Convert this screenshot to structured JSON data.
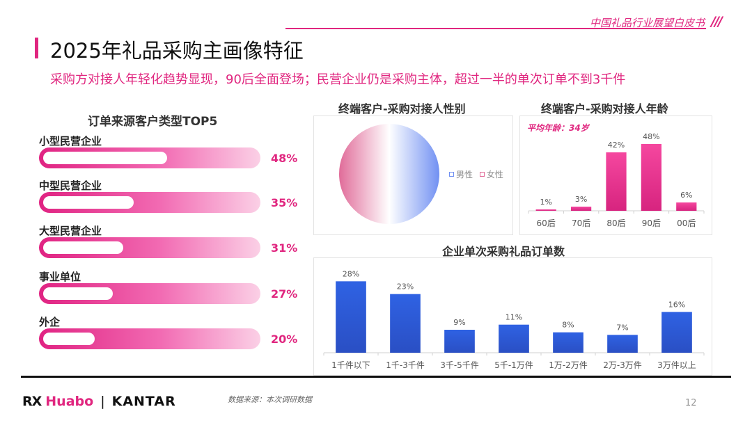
{
  "header": {
    "report_name": "中国礼品行业展望白皮书",
    "slashes": "///",
    "title": "2025年礼品采购主画像特征",
    "subtitle": "采购方对接人年轻化趋势显现，90后全面登场；民营企业仍是采购主体，超过一半的单次订单不到3千件"
  },
  "colors": {
    "accent": "#e0267f",
    "blue": "#2f5fd8",
    "pink_bar": "#e9399a"
  },
  "chart_data": [
    {
      "type": "bar",
      "title": "订单来源客户类型TOP5",
      "categories": [
        "小型民营企业",
        "中型民营企业",
        "大型民营企业",
        "事业单位",
        "外企"
      ],
      "values": [
        48,
        35,
        31,
        27,
        20
      ],
      "value_labels": [
        "48%",
        "35%",
        "31%",
        "27%",
        "20%"
      ],
      "unit": "%"
    },
    {
      "type": "pie",
      "title": "终端客户-采购对接人性别",
      "categories": [
        "男性",
        "女性"
      ],
      "values": [
        50,
        50
      ],
      "colors": [
        "#6f8ff2",
        "#e06a98"
      ]
    },
    {
      "type": "bar",
      "title": "终端客户-采购对接人年龄",
      "annotation": "平均年龄：34岁",
      "categories": [
        "60后",
        "70后",
        "80后",
        "90后",
        "00后"
      ],
      "values": [
        1,
        3,
        42,
        48,
        6
      ],
      "value_labels": [
        "1%",
        "3%",
        "42%",
        "48%",
        "6%"
      ],
      "ylim": [
        0,
        50
      ]
    },
    {
      "type": "bar",
      "title": "企业单次采购礼品订单数",
      "categories": [
        "1千件以下",
        "1千-3千件",
        "3千-5千件",
        "5千-1万件",
        "1万-2万件",
        "2万-3万件",
        "3万件以上"
      ],
      "values": [
        28,
        23,
        9,
        11,
        8,
        7,
        16
      ],
      "value_labels": [
        "28%",
        "23%",
        "9%",
        "11%",
        "8%",
        "7%",
        "16%"
      ],
      "ylim": [
        0,
        30
      ]
    }
  ],
  "footer": {
    "logo_rx": "RX",
    "logo_huabo": "Huabo",
    "logo_sep": "|",
    "logo_kantar": "KANTAR",
    "source": "数据来源：本次调研数据",
    "page_number": "12"
  }
}
